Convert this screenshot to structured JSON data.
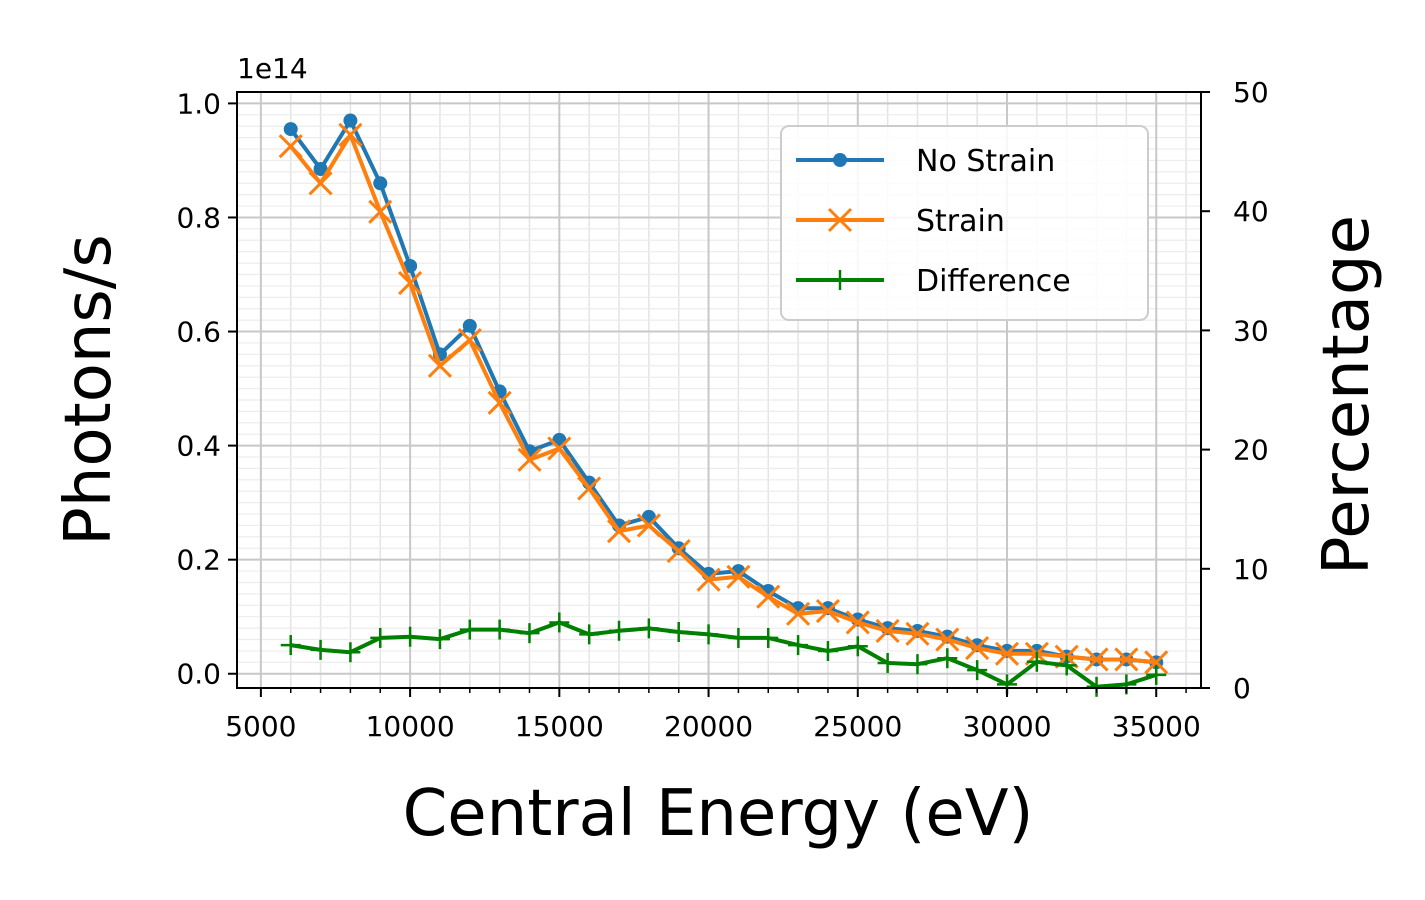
{
  "chart_data": {
    "type": "line",
    "xlabel": "Central Energy (eV)",
    "ylabel": "Photons/s",
    "y2label": "Percentage",
    "y_offset_label": "1e14",
    "xlim": [
      4200,
      36500
    ],
    "ylim": [
      -0.025,
      1.02
    ],
    "y2lim": [
      0,
      50
    ],
    "x_ticks": [
      5000,
      10000,
      15000,
      20000,
      25000,
      30000,
      35000
    ],
    "x_tick_labels": [
      "5000",
      "10000",
      "15000",
      "20000",
      "25000",
      "30000",
      "35000"
    ],
    "y_ticks": [
      0.0,
      0.2,
      0.4,
      0.6,
      0.8,
      1.0
    ],
    "y_tick_labels": [
      "0.0",
      "0.2",
      "0.4",
      "0.6",
      "0.8",
      "1.0"
    ],
    "y2_ticks": [
      0,
      10,
      20,
      30,
      40,
      50
    ],
    "y2_tick_labels": [
      "0",
      "10",
      "20",
      "30",
      "40",
      "50"
    ],
    "grid": true,
    "legend_position": "top-right",
    "x": [
      6000,
      7000,
      8000,
      9000,
      10000,
      11000,
      12000,
      13000,
      14000,
      15000,
      16000,
      17000,
      18000,
      19000,
      20000,
      21000,
      22000,
      23000,
      24000,
      25000,
      26000,
      27000,
      28000,
      29000,
      30000,
      31000,
      32000,
      33000,
      34000,
      35000
    ],
    "series": [
      {
        "name": "No Strain",
        "axis": "left",
        "color": "#1f77b4",
        "marker": "dot",
        "values": [
          0.955,
          0.885,
          0.97,
          0.86,
          0.715,
          0.56,
          0.61,
          0.495,
          0.39,
          0.41,
          0.335,
          0.26,
          0.275,
          0.22,
          0.175,
          0.18,
          0.145,
          0.115,
          0.115,
          0.095,
          0.08,
          0.075,
          0.065,
          0.05,
          0.04,
          0.04,
          0.03,
          0.025,
          0.025,
          0.02
        ]
      },
      {
        "name": "Strain",
        "axis": "left",
        "color": "#ff7f0e",
        "marker": "x",
        "values": [
          0.925,
          0.86,
          0.945,
          0.81,
          0.685,
          0.54,
          0.585,
          0.475,
          0.375,
          0.395,
          0.325,
          0.25,
          0.26,
          0.215,
          0.165,
          0.17,
          0.135,
          0.105,
          0.11,
          0.09,
          0.075,
          0.07,
          0.06,
          0.045,
          0.035,
          0.035,
          0.03,
          0.025,
          0.025,
          0.02
        ]
      },
      {
        "name": "Difference",
        "axis": "right",
        "color": "#008000",
        "marker": "plus",
        "values": [
          3.6,
          3.2,
          3.0,
          4.2,
          4.3,
          4.1,
          4.9,
          4.9,
          4.6,
          5.5,
          4.5,
          4.8,
          5.0,
          4.7,
          4.5,
          4.2,
          4.2,
          3.6,
          3.1,
          3.5,
          2.1,
          2.0,
          2.5,
          1.5,
          0.3,
          2.2,
          1.9,
          0.1,
          0.3,
          1.1
        ]
      }
    ]
  }
}
